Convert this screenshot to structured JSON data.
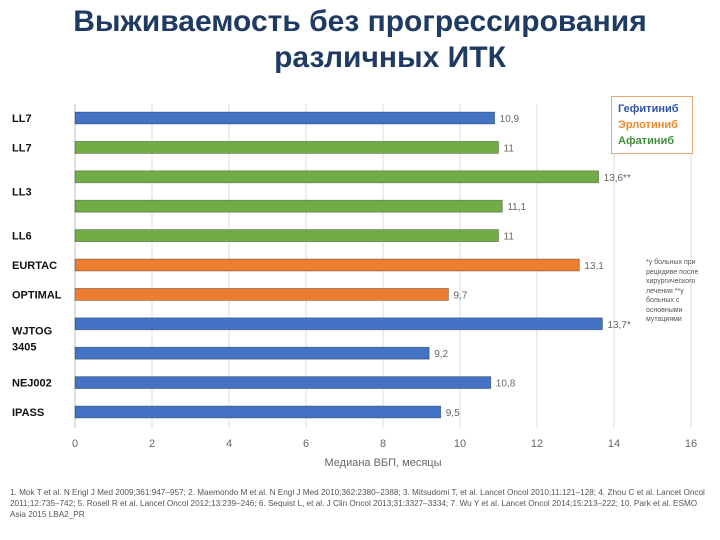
{
  "title": {
    "line1": "Выживаемость без прогрессирования",
    "line2": "различных ИТК"
  },
  "legend": {
    "gefitinib": "Гефитиниб",
    "erlotinib": "Эрлотиниб",
    "afatinib": "Афатиниб"
  },
  "colors": {
    "gefitinib": "#4472c4",
    "erlotinib": "#ed7d31",
    "afatinib": "#70ad47",
    "title": "#1f3b63"
  },
  "footnote": "*у больных при рецидиве после хирургического лечения **у больных с основными мутациями",
  "references": "1. Mok T et al. N Engl J Med 2009;361:947–957; 2. Maemondo M et al. N Engl J Med 2010;362:2380–2388; 3. Mitsudomi T, et al. Lancet Oncol 2010;11:121–128; 4. Zhou C et al. Lancet Oncol 2011;12:735–742; 5. Rosell R et al. Lancet Oncol 2012;13:239–246; 6. Sequist L, et al. J Clin Oncol 2013;31:3327–3334; 7. Wu Y et al. Lancet Oncol 2014;15:213–222; 10. Park et al. ESMO Asia 2015 LBA2_PR",
  "chart_data": {
    "type": "bar",
    "orientation": "horizontal",
    "xlabel": "Медиана ВБП, месяцы",
    "xlim": [
      0,
      16
    ],
    "xticks": [
      0,
      2,
      4,
      6,
      8,
      10,
      12,
      14,
      16
    ],
    "grid": true,
    "categories": [
      {
        "label": "LL7",
        "rows": 1
      },
      {
        "label": "LL7",
        "rows": 1
      },
      {
        "label": "LL3",
        "rows": 2
      },
      {
        "label": "LL6",
        "rows": 1
      },
      {
        "label": "EURTAC",
        "rows": 1
      },
      {
        "label": "OPTIMAL",
        "rows": 1
      },
      {
        "label": "WJTOG\n3405",
        "rows": 2
      },
      {
        "label": "NEJ002",
        "rows": 1
      },
      {
        "label": "IPASS",
        "rows": 1
      }
    ],
    "bars": [
      {
        "value": 10.9,
        "label": "10,9",
        "drug": "gefitinib"
      },
      {
        "value": 11,
        "label": "11",
        "drug": "afatinib"
      },
      {
        "value": 13.6,
        "label": "13,6**",
        "drug": "afatinib"
      },
      {
        "value": 11.1,
        "label": "11,1",
        "drug": "afatinib"
      },
      {
        "value": 11,
        "label": "11",
        "drug": "afatinib"
      },
      {
        "value": 13.1,
        "label": "13,1",
        "drug": "erlotinib"
      },
      {
        "value": 9.7,
        "label": "9,7",
        "drug": "erlotinib"
      },
      {
        "value": 13.7,
        "label": "13,7*",
        "drug": "gefitinib"
      },
      {
        "value": 9.2,
        "label": "9,2",
        "drug": "gefitinib"
      },
      {
        "value": 10.8,
        "label": "10,8",
        "drug": "gefitinib"
      },
      {
        "value": 9.5,
        "label": "9,5",
        "drug": "gefitinib"
      }
    ]
  }
}
